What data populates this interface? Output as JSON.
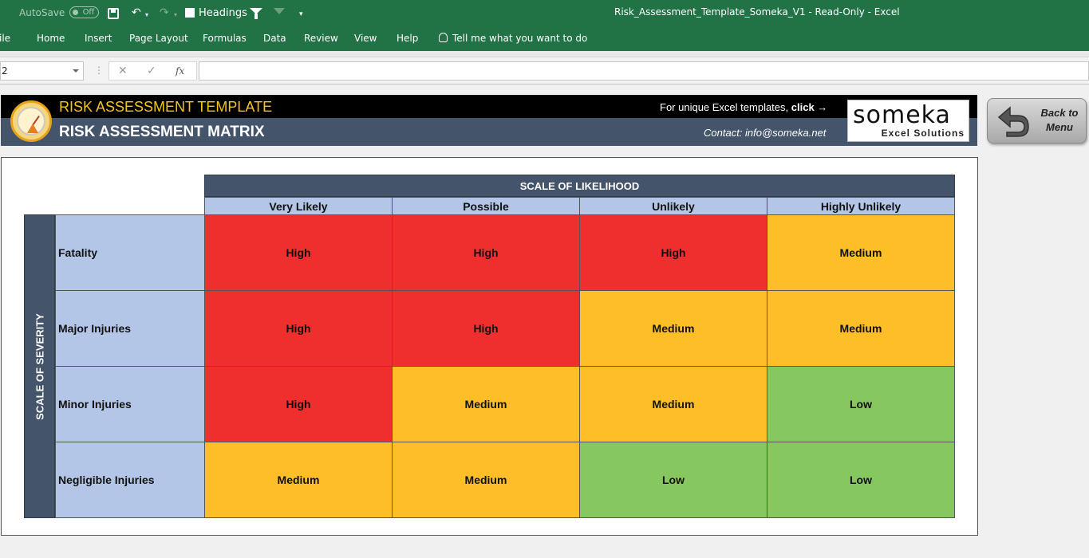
{
  "titlebar": {
    "autosave_label": "AutoSave",
    "autosave_state": "Off",
    "headings_label": "Headings",
    "window_title": "Risk_Assessment_Template_Someka_V1  -  Read-Only  -  Excel"
  },
  "ribbon": {
    "tabs": [
      "ile",
      "Home",
      "Insert",
      "Page Layout",
      "Formulas",
      "Data",
      "Review",
      "View",
      "Help"
    ],
    "tell_me": "Tell me what you want to do"
  },
  "formula_bar": {
    "name_box": "2",
    "formula": ""
  },
  "banner": {
    "title": "RISK ASSESSMENT TEMPLATE",
    "subtitle": "RISK ASSESSMENT MATRIX",
    "link_text": "For unique Excel templates,",
    "link_click": "click →",
    "contact": "Contact: info@someka.net",
    "logo_word": "someka",
    "logo_sub": "Excel Solutions"
  },
  "back_button": {
    "label_line1": "Back to",
    "label_line2": "Menu"
  },
  "matrix": {
    "likelihood_title": "SCALE OF LIKELIHOOD",
    "severity_title": "SCALE OF SEVERITY",
    "columns": [
      "Very Likely",
      "Possible",
      "Unlikely",
      "Highly Unlikely"
    ],
    "rows": [
      {
        "label": "Fatality",
        "cells": [
          "High",
          "High",
          "High",
          "Medium"
        ]
      },
      {
        "label": "Major Injuries",
        "cells": [
          "High",
          "High",
          "Medium",
          "Medium"
        ]
      },
      {
        "label": "Minor Injuries",
        "cells": [
          "High",
          "Medium",
          "Medium",
          "Low"
        ]
      },
      {
        "label": "Negligible Injuries",
        "cells": [
          "Medium",
          "Medium",
          "Low",
          "Low"
        ]
      }
    ],
    "colors": {
      "High": "#ef2e2e",
      "Medium": "#fdbe27",
      "Low": "#86c75f",
      "header": "#44546a",
      "label_bg": "#b4c6e7"
    }
  },
  "icons": {
    "save": "save-icon",
    "undo": "undo-icon",
    "redo": "redo-icon",
    "filter": "filter-icon",
    "clear_filter": "clear-filter-icon",
    "customize": "customize-qat-icon",
    "tell_me": "lightbulb-icon",
    "cancel": "cancel-icon",
    "enter": "enter-icon",
    "function": "insert-function-icon",
    "gauge": "gauge-icon",
    "back": "back-arrow-icon"
  }
}
